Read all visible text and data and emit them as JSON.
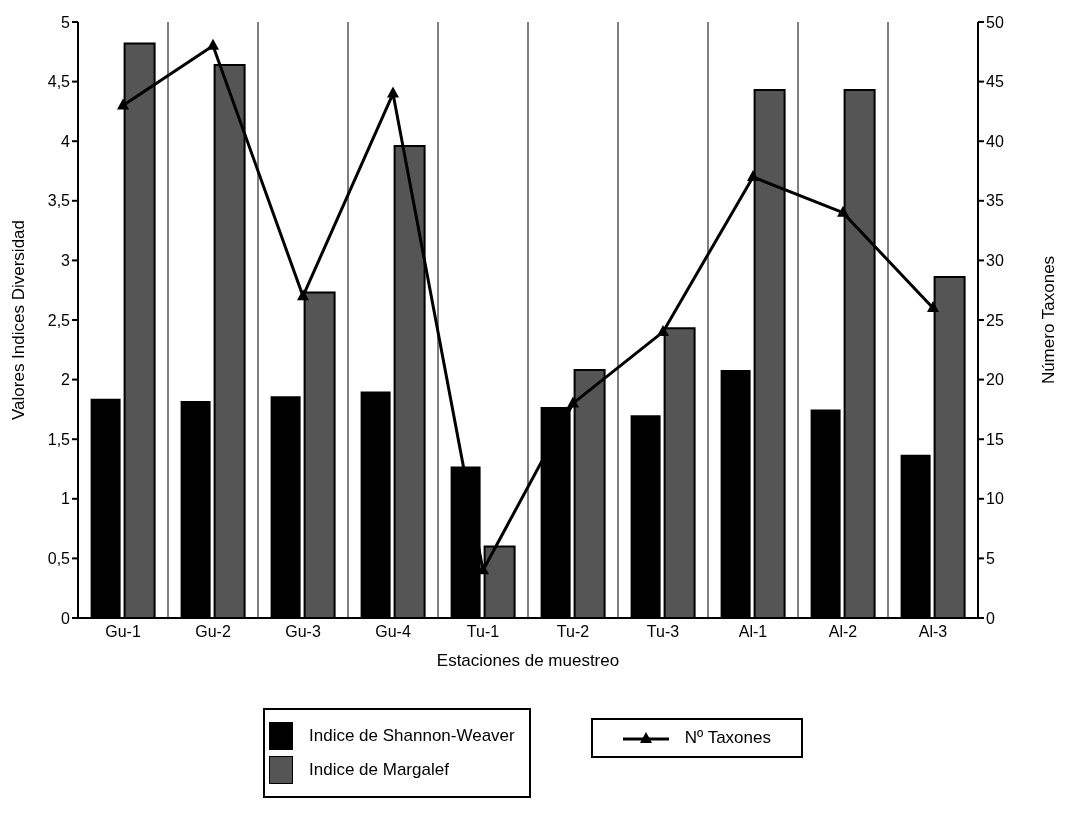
{
  "chart_data": {
    "type": "bar",
    "xlabel": "Estaciones de muestreo",
    "ylabel": "Valores Indices Diversidad",
    "y2label": "Número Taxones",
    "categories": [
      "Gu-1",
      "Gu-2",
      "Gu-3",
      "Gu-4",
      "Tu-1",
      "Tu-2",
      "Tu-3",
      "Al-1",
      "Al-2",
      "Al-3"
    ],
    "series": [
      {
        "name": "Indice de Shannon-Weaver",
        "color": "#000000",
        "values": [
          1.84,
          1.82,
          1.86,
          1.9,
          1.27,
          1.77,
          1.7,
          2.08,
          1.75,
          1.37
        ]
      },
      {
        "name": "Indice de Margalef",
        "color": "#555555",
        "values": [
          4.82,
          4.64,
          2.73,
          3.96,
          0.6,
          2.08,
          2.43,
          4.43,
          4.43,
          2.86
        ]
      },
      {
        "name": "Nº Taxones",
        "type": "line",
        "axis": "y2",
        "color": "#000000",
        "marker": "triangle",
        "values": [
          43,
          48,
          27,
          44,
          4,
          18,
          24,
          37,
          34,
          26
        ]
      }
    ],
    "ylim": [
      0,
      5
    ],
    "yticks": [
      0,
      {
        "value": 0.5,
        "label": "0,5"
      },
      1,
      {
        "value": 1.5,
        "label": "1,5"
      },
      2,
      {
        "value": 2.5,
        "label": "2,5"
      },
      3,
      {
        "value": 3.5,
        "label": "3,5"
      },
      4,
      {
        "value": 4.5,
        "label": "4,5"
      },
      5
    ],
    "y2lim": [
      0,
      50
    ],
    "y2ticks": [
      0,
      5,
      10,
      15,
      20,
      25,
      30,
      35,
      40,
      45,
      50
    ],
    "grid": "x",
    "legend": "bottom"
  }
}
